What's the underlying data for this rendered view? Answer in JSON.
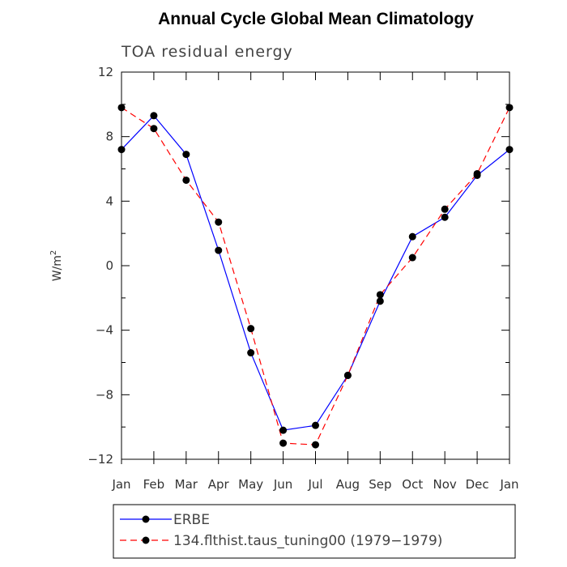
{
  "chart_data": {
    "type": "line",
    "title": "Annual Cycle Global Mean Climatology",
    "subtitle": "TOA residual energy",
    "ylabel": "W/m",
    "ylabel_sup": "2",
    "xlabel": "",
    "categories": [
      "Jan",
      "Feb",
      "Mar",
      "Apr",
      "May",
      "Jun",
      "Jul",
      "Aug",
      "Sep",
      "Oct",
      "Nov",
      "Dec",
      "Jan"
    ],
    "ylim": [
      -12,
      12
    ],
    "yticks": [
      -12,
      -8,
      -4,
      0,
      4,
      8,
      12
    ],
    "ytick_labels": [
      "−12",
      "−8",
      "−4",
      "0",
      "4",
      "8",
      "12"
    ],
    "grid": false,
    "legend_position": "bottom",
    "series": [
      {
        "name": "ERBE",
        "color": "#0000ff",
        "style": "solid",
        "values": [
          7.2,
          9.3,
          6.9,
          0.95,
          -5.4,
          -10.2,
          -9.9,
          -6.8,
          -2.2,
          1.8,
          3.0,
          5.6,
          7.2
        ]
      },
      {
        "name": "134.flthist.taus_tuning00 (1979−1979)",
        "color": "#ff0000",
        "style": "dashed",
        "values": [
          9.8,
          8.5,
          5.3,
          2.7,
          -3.9,
          -11.0,
          -11.1,
          -6.8,
          -1.8,
          0.5,
          3.5,
          5.7,
          9.8
        ]
      }
    ]
  }
}
